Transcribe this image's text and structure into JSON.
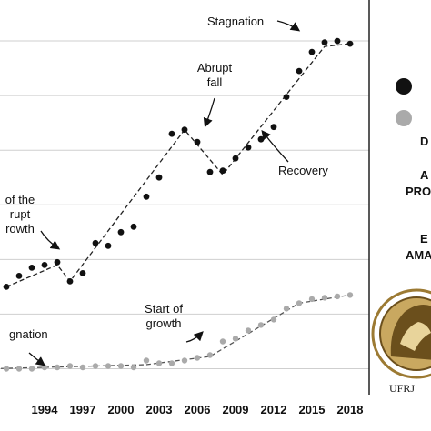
{
  "chart_data": {
    "type": "line",
    "x_tick_labels": [
      "1994",
      "1997",
      "2000",
      "2003",
      "2006",
      "2009",
      "2012",
      "2015",
      "2018"
    ],
    "series": [
      {
        "marker_color": "#111111",
        "points": [
          [
            1991,
            3.0
          ],
          [
            1992,
            3.4
          ],
          [
            1993,
            3.7
          ],
          [
            1994,
            3.8
          ],
          [
            1995,
            3.9
          ],
          [
            1996,
            3.2
          ],
          [
            1997,
            3.5
          ],
          [
            1998,
            4.6
          ],
          [
            1999,
            4.5
          ],
          [
            2000,
            5.0
          ],
          [
            2001,
            5.2
          ],
          [
            2002,
            6.3
          ],
          [
            2003,
            7.0
          ],
          [
            2004,
            8.6
          ],
          [
            2005,
            8.75
          ],
          [
            2006,
            8.3
          ],
          [
            2007,
            7.2
          ],
          [
            2008,
            7.25
          ],
          [
            2009,
            7.7
          ],
          [
            2010,
            8.1
          ],
          [
            2011,
            8.4
          ],
          [
            2012,
            8.85
          ],
          [
            2013,
            9.95
          ],
          [
            2014,
            10.9
          ],
          [
            2015,
            11.6
          ],
          [
            2016,
            11.95
          ],
          [
            2017,
            12.0
          ],
          [
            2018,
            11.9
          ]
        ],
        "trend": [
          [
            1991,
            3.0
          ],
          [
            1995,
            3.8
          ],
          [
            1996,
            3.2
          ],
          [
            2005,
            8.75
          ],
          [
            2008,
            7.1
          ],
          [
            2016,
            11.8
          ],
          [
            2018,
            11.9
          ]
        ]
      },
      {
        "marker_color": "#aaaaaa",
        "points": [
          [
            1990,
            0.0
          ],
          [
            1991,
            0.0
          ],
          [
            1992,
            0.0
          ],
          [
            1993,
            0.0
          ],
          [
            1994,
            0.05
          ],
          [
            1995,
            0.05
          ],
          [
            1996,
            0.1
          ],
          [
            1997,
            0.05
          ],
          [
            1998,
            0.1
          ],
          [
            1999,
            0.1
          ],
          [
            2000,
            0.1
          ],
          [
            2001,
            0.05
          ],
          [
            2002,
            0.3
          ],
          [
            2003,
            0.2
          ],
          [
            2004,
            0.2
          ],
          [
            2005,
            0.3
          ],
          [
            2006,
            0.4
          ],
          [
            2007,
            0.5
          ],
          [
            2008,
            1.0
          ],
          [
            2009,
            1.1
          ],
          [
            2010,
            1.4
          ],
          [
            2011,
            1.6
          ],
          [
            2012,
            1.8
          ],
          [
            2013,
            2.2
          ],
          [
            2014,
            2.4
          ],
          [
            2015,
            2.55
          ],
          [
            2016,
            2.6
          ],
          [
            2017,
            2.65
          ],
          [
            2018,
            2.7
          ]
        ],
        "trend": [
          [
            1990,
            0.0
          ],
          [
            2002,
            0.15
          ],
          [
            2007,
            0.45
          ],
          [
            2014,
            2.4
          ],
          [
            2018,
            2.7
          ]
        ]
      }
    ],
    "xlim": [
      1990.5,
      2019.5
    ],
    "ylim": [
      -0.35,
      13.5
    ],
    "annotations": [
      {
        "text": "Stagnation",
        "lines": [
          "Stagnation"
        ],
        "year": 2016,
        "value": 11.95
      },
      {
        "text": "Abrupt fall",
        "lines": [
          "Abrupt",
          "fall"
        ],
        "year": 2006.6,
        "value": 8.1
      },
      {
        "text": "Recovery",
        "lines": [
          "Recovery"
        ],
        "year": 2011.3,
        "value": 8.2
      },
      {
        "text": "of the abrupt growth",
        "lines": [
          "of the",
          "rupt",
          "rowth"
        ],
        "year": 1994.5,
        "value": 4.7
      },
      {
        "text": "Start of growth",
        "lines": [
          "Start of",
          "growth"
        ],
        "year": 2007.2,
        "value": 0.9
      },
      {
        "text": "gnation",
        "lines": [
          "gnation"
        ],
        "year": 1996.2,
        "value": 0.35
      }
    ]
  },
  "legend": {
    "items": [
      {
        "marker_color": "#111111"
      },
      {
        "marker_color": "#aaaaaa"
      }
    ]
  },
  "side_text": {
    "line1": "D",
    "line2": "A",
    "line3": "PRO",
    "line4": "E",
    "line5": "AMA"
  },
  "logo": {
    "label": "UFRJ"
  }
}
